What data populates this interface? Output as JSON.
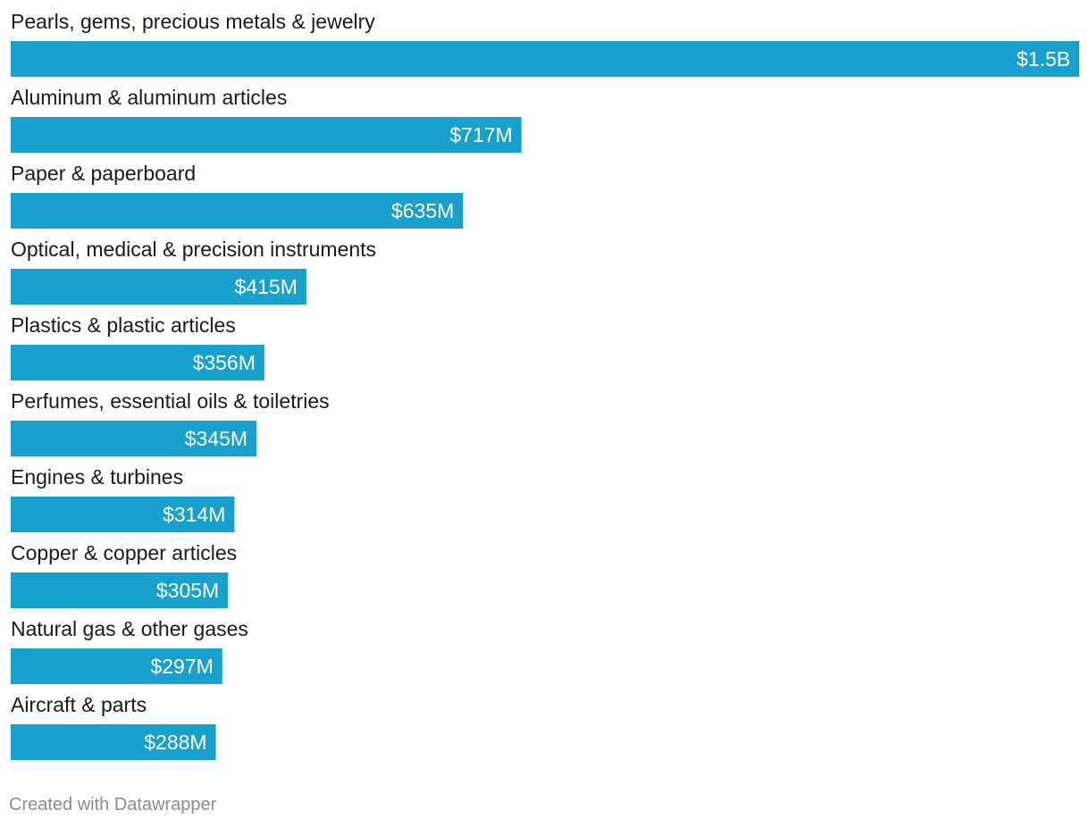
{
  "chart_data": {
    "type": "bar",
    "orientation": "horizontal",
    "categories": [
      "Pearls, gems, precious metals & jewelry",
      "Aluminum & aluminum articles",
      "Paper & paperboard",
      "Optical, medical & precision instruments",
      "Plastics & plastic articles",
      "Perfumes, essential oils & toiletries",
      "Engines & turbines",
      "Copper & copper articles",
      "Natural gas & other gases",
      "Aircraft & parts"
    ],
    "values": [
      1500,
      717,
      635,
      415,
      356,
      345,
      314,
      305,
      297,
      288
    ],
    "value_unit": "million USD",
    "value_labels": [
      "$1.5B",
      "$717M",
      "$635M",
      "$415M",
      "$356M",
      "$345M",
      "$314M",
      "$305M",
      "$297M",
      "$288M"
    ],
    "title": "",
    "xlabel": "",
    "ylabel": "",
    "xlim": [
      0,
      1500
    ],
    "grid": false,
    "legend": "none",
    "bar_color": "#18a1cd"
  },
  "footer": {
    "credit": "Created with Datawrapper"
  }
}
